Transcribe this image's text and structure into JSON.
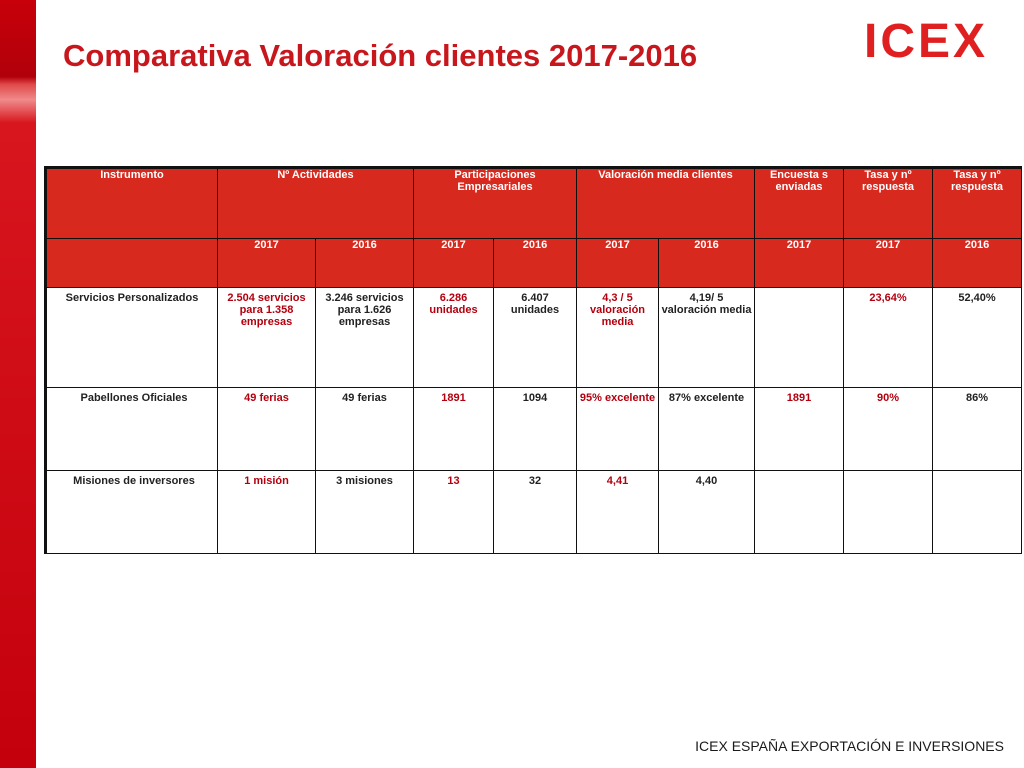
{
  "slide": {
    "title": "Comparativa Valoración clientes 2017-2016",
    "logo_text": "ICEX",
    "footer": "ICEX ESPAÑA EXPORTACIÓN E INVERSIONES"
  },
  "table": {
    "headers": {
      "instrumento": "Instrumento",
      "actividades": "Nº Actividades",
      "participaciones": "Participaciones Empresariales",
      "valoracion": "Valoración media clientes",
      "encuestas": "Encuesta s enviadas",
      "tasa_2017": "Tasa y nº respuesta",
      "tasa_2016": "Tasa y nº respuesta"
    },
    "years": [
      "2017",
      "2016",
      "2017",
      "2016",
      "2017",
      "2016",
      "2017",
      "2017",
      "2016"
    ],
    "rows": [
      {
        "instrumento": "Servicios Personalizados",
        "cells": [
          "2.504 servicios para 1.358 empresas",
          "3.246 servicios para 1.626 empresas",
          "6.286 unidades",
          "6.407 unidades",
          "4,3 / 5 valoración media",
          "4,19/ 5 valoración media",
          "",
          "23,64%",
          "52,40%"
        ]
      },
      {
        "instrumento": "Pabellones Oficiales",
        "cells": [
          "49 ferias",
          "49 ferias",
          "1891",
          "1094",
          "95% excelente",
          "87% excelente",
          "1891",
          "90%",
          "86%"
        ]
      },
      {
        "instrumento": "Misiones de inversores",
        "cells": [
          "1 misión",
          "3 misiones",
          "13",
          "32",
          "4,41",
          "4,40",
          "",
          "",
          ""
        ]
      }
    ]
  },
  "colors": {
    "brand_red": "#c8161d",
    "header_fill": "#d8291f",
    "value_2017": "#b3000e"
  }
}
